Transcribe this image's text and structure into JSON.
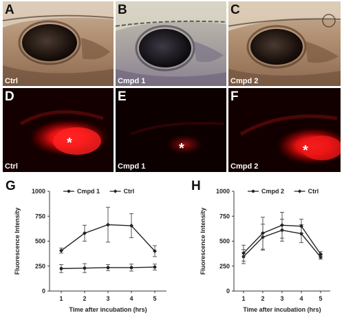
{
  "panels": {
    "A": {
      "letter": "A",
      "label": "Ctrl"
    },
    "B": {
      "letter": "B",
      "label": "Cmpd 1"
    },
    "C": {
      "letter": "C",
      "label": "Cmpd 2"
    },
    "D": {
      "letter": "D",
      "label": "Ctrl",
      "asterisk": "*"
    },
    "E": {
      "letter": "E",
      "label": "Cmpd 1",
      "asterisk": "*"
    },
    "F": {
      "letter": "F",
      "label": "Cmpd 2",
      "asterisk": "*"
    }
  },
  "chart_data": [
    {
      "type": "line",
      "panel": "G",
      "ylabel": "Fluorescence Intensity",
      "xlabel": "Time after incubation (hrs)",
      "x": [
        1,
        2,
        3,
        4,
        5
      ],
      "xlim": [
        0.5,
        5.5
      ],
      "ylim": [
        0,
        1000
      ],
      "yticks": [
        0,
        250,
        500,
        750,
        1000
      ],
      "grid": false,
      "legend": "top",
      "series": [
        {
          "name": "Cmpd 1",
          "values": [
            225,
            230,
            235,
            235,
            240
          ],
          "errors": [
            40,
            45,
            30,
            35,
            30
          ],
          "marker": "circle"
        },
        {
          "name": "Ctrl",
          "values": [
            405,
            580,
            665,
            655,
            400
          ],
          "errors": [
            25,
            80,
            175,
            120,
            55
          ],
          "marker": "diamond"
        }
      ]
    },
    {
      "type": "line",
      "panel": "H",
      "ylabel": "Fluorescence Intensity",
      "xlabel": "Time after incubation (hrs)",
      "x": [
        1,
        2,
        3,
        4,
        5
      ],
      "xlim": [
        0.5,
        5.5
      ],
      "ylim": [
        0,
        1000
      ],
      "yticks": [
        0,
        250,
        500,
        750,
        1000
      ],
      "grid": false,
      "legend": "top",
      "series": [
        {
          "name": "Cmpd 2",
          "values": [
            345,
            540,
            610,
            575,
            340
          ],
          "errors": [
            70,
            130,
            110,
            90,
            20
          ],
          "marker": "circle"
        },
        {
          "name": "Ctrl",
          "values": [
            380,
            580,
            660,
            650,
            370
          ],
          "errors": [
            80,
            160,
            130,
            70,
            25
          ],
          "marker": "diamond"
        }
      ]
    }
  ]
}
